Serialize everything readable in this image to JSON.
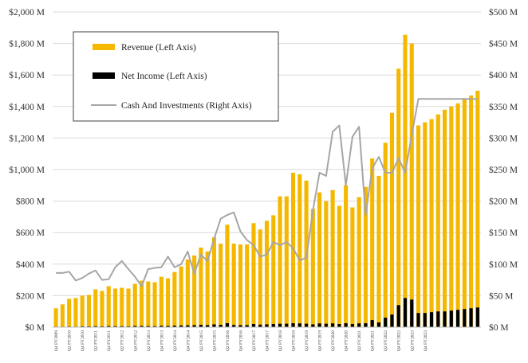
{
  "chart_data": {
    "type": "bar",
    "title": "",
    "xlabel": "",
    "ylabel_left": "",
    "ylabel_right": "",
    "ylim_left": [
      0,
      2000
    ],
    "ylim_right": [
      0,
      500
    ],
    "y_ticks_left": [
      "$0 M",
      "$200 M",
      "$400 M",
      "$600 M",
      "$800 M",
      "$1,000 M",
      "$1,200 M",
      "$1,400 M",
      "$1,600 M",
      "$1,800 M",
      "$2,000 M"
    ],
    "y_ticks_right": [
      "$0 M",
      "$50 M",
      "$100 M",
      "$150 M",
      "$200 M",
      "$250 M",
      "$300 M",
      "$350 M",
      "$400 M",
      "$450 M",
      "$500 M"
    ],
    "categories": [
      "Q4 FY2009",
      "Q1 FY2010",
      "Q2 FY2010",
      "Q3 FY2010",
      "Q4 FY2010",
      "Q1 FY2011",
      "Q2 FY2011",
      "Q3 FY2011",
      "Q4 FY2011",
      "Q1 FY2012",
      "Q2 FY2012",
      "Q3 FY2012",
      "Q4 FY2012",
      "Q1 FY2013",
      "Q2 FY2013",
      "Q3 FY2013",
      "Q4 FY2013",
      "Q1 FY2014",
      "Q2 FY2014",
      "Q3 FY2014",
      "Q4 FY2014",
      "Q1 FY2015",
      "Q2 FY2015",
      "Q3 FY2015",
      "Q4 FY2015",
      "Q1 FY2016",
      "Q2 FY2016",
      "Q3 FY2016",
      "Q4 FY2016",
      "Q1 FY2017",
      "Q2 FY2017",
      "Q3 FY2017",
      "Q4 FY2017",
      "Q1 FY2018",
      "Q2 FY2018",
      "Q3 FY2018",
      "Q4 FY2018",
      "Q1 FY2019",
      "Q2 FY2019",
      "Q3 FY2019",
      "Q4 FY2019",
      "Q1 FY2020",
      "Q2 FY2020",
      "Q3 FY2020",
      "Q4 FY2020",
      "Q1 FY2021",
      "Q2 FY2021",
      "Q3 FY2021",
      "Q4 FY2021",
      "Q1 FY2022",
      "Q2 FY2022",
      "Q3 FY2022",
      "Q4 FY2022",
      "Q1 FY2023",
      "Q2 FY2023",
      "Q3 FY2023",
      "Q4 FY2023",
      "Q1 FY2024",
      "Q2 FY2024",
      "Q3 FY2024",
      "Q4 FY2024",
      "Q1 FY2025",
      "Q2 FY2025",
      "Q3 FY2025",
      "Q4 FY2025"
    ],
    "x_ticks_shown": [
      "Q4 FY2009",
      "Q2 FY2010",
      "Q4 FY2010",
      "Q2 FY2011",
      "Q4 FY2011",
      "Q2 FY2012",
      "Q4 FY2012",
      "Q2 FY2013",
      "Q4 FY2013",
      "Q2 FY2014",
      "Q4 FY2014",
      "Q2 FY2015",
      "Q4 FY2015",
      "Q2 FY2016",
      "Q4 FY2016",
      "Q2 FY2017",
      "Q4 FY2017",
      "Q2 FY2018",
      "Q4 FY2018",
      "Q2 FY2019",
      "Q4 FY2019",
      "Q2 FY2020",
      "Q4 FY2020",
      "Q2 FY2021",
      "Q4 FY2021",
      "Q2 FY2022",
      "Q4 FY2022",
      "Q2 FY2023",
      "Q4 FY2023"
    ],
    "legend": {
      "placement": "top-left",
      "entries": [
        "Revenue (Left Axis)",
        "Net Income (Left Axis)",
        "Cash And Investments (Right Axis)"
      ]
    },
    "series": [
      {
        "name": "Revenue (Left Axis)",
        "type": "bar",
        "axis": "left",
        "color": "#f5b800",
        "values": [
          120,
          145,
          180,
          185,
          200,
          205,
          240,
          230,
          260,
          245,
          250,
          245,
          275,
          295,
          290,
          285,
          320,
          310,
          350,
          385,
          430,
          455,
          505,
          480,
          570,
          530,
          650,
          530,
          525,
          525,
          660,
          620,
          675,
          710,
          830,
          830,
          980,
          970,
          930,
          750,
          855,
          800,
          870,
          770,
          900,
          760,
          825,
          890,
          1070,
          960,
          1170,
          1360,
          1640,
          1855,
          1800,
          1280,
          1300,
          1320,
          1350,
          1380,
          1400,
          1420,
          1450,
          1470,
          1500
        ]
      },
      {
        "name": "Net Income (Left Axis)",
        "type": "bar",
        "axis": "left",
        "color": "#000000",
        "values": [
          3,
          3,
          4,
          3,
          5,
          5,
          6,
          5,
          7,
          6,
          6,
          5,
          8,
          8,
          7,
          6,
          9,
          8,
          10,
          11,
          12,
          13,
          15,
          13,
          18,
          15,
          25,
          14,
          13,
          13,
          20,
          16,
          18,
          20,
          22,
          22,
          25,
          24,
          22,
          18,
          24,
          22,
          24,
          20,
          25,
          20,
          24,
          25,
          45,
          30,
          60,
          80,
          140,
          185,
          175,
          90,
          90,
          95,
          100,
          100,
          105,
          110,
          115,
          120,
          125
        ]
      },
      {
        "name": "Cash And Investments (Right Axis)",
        "type": "line",
        "axis": "right",
        "color": "#a6a6a6",
        "values": [
          86,
          86,
          88,
          74,
          78,
          85,
          90,
          75,
          76,
          95,
          105,
          92,
          80,
          65,
          92,
          94,
          95,
          112,
          95,
          100,
          120,
          85,
          115,
          105,
          140,
          172,
          178,
          182,
          152,
          138,
          130,
          112,
          115,
          135,
          130,
          135,
          125,
          106,
          110,
          185,
          245,
          240,
          310,
          320,
          225,
          302,
          318,
          178,
          252,
          270,
          245,
          245,
          268,
          245,
          305,
          362,
          362,
          362,
          362,
          362,
          362,
          362,
          362,
          362,
          362
        ]
      }
    ]
  }
}
